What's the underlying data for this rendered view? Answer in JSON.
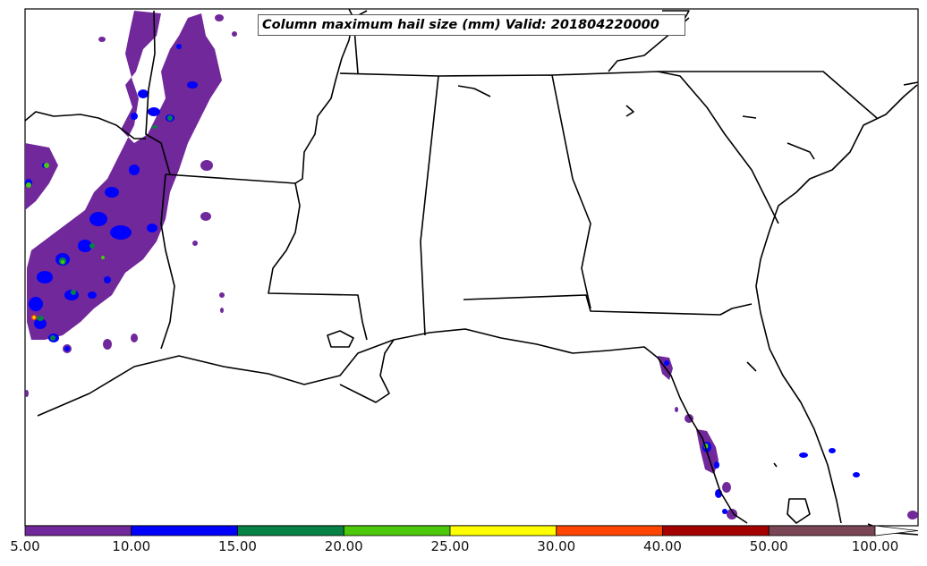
{
  "title": "Column maximum hail size (mm) Valid: 201804220000",
  "colorbar": {
    "labels": [
      "5.00",
      "10.00",
      "15.00",
      "20.00",
      "25.00",
      "30.00",
      "40.00",
      "50.00",
      "100.00"
    ],
    "colors": [
      "#70289a",
      "#0000ff",
      "#078246",
      "#4ec80a",
      "#ffff00",
      "#ff4500",
      "#a50000",
      "#7a4554"
    ]
  },
  "colors": {
    "purple": "#70289a",
    "blue": "#0000ff",
    "green": "#078246",
    "lime": "#4ec80a",
    "yellow": "#ffff00",
    "orange": "#ff4500"
  }
}
